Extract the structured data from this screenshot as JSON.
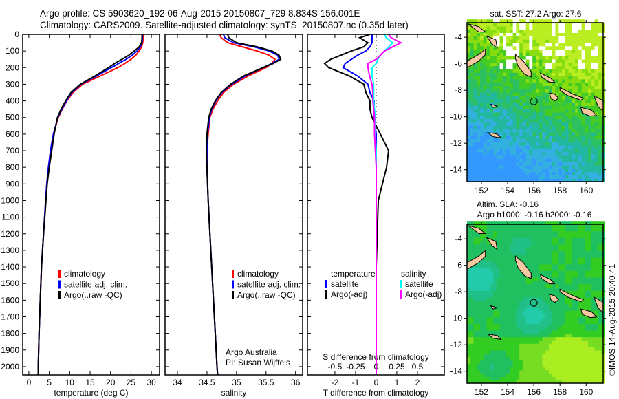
{
  "title": {
    "line1": "Argo profile: CS 5903620_192 06-Aug-2015 20150807_729 8.834S 156.001E",
    "line2": "Climatology: CARS2009. Satellite-adjusted climatology: synTS_20150807.nc (0.35d later)"
  },
  "colors": {
    "climatology": "#ff0000",
    "satellite": "#0000ff",
    "argo": "#000000",
    "sal_satellite": "#00ffff",
    "sal_argo": "#ff00ff",
    "land": "#f5c8a0"
  },
  "chart_data": [
    {
      "type": "line",
      "id": "temperature",
      "xlabel": "temperature (deg C)",
      "ylabel": "",
      "xlim": [
        -1.5,
        32
      ],
      "ylim": [
        2050,
        0
      ],
      "xticks": [
        0,
        5,
        10,
        15,
        20,
        25,
        30
      ],
      "yticks": [
        0,
        100,
        200,
        300,
        400,
        500,
        600,
        700,
        800,
        900,
        1000,
        1100,
        1200,
        1300,
        1400,
        1500,
        1600,
        1700,
        1800,
        1900,
        2000
      ],
      "depth": [
        0,
        20,
        50,
        75,
        100,
        125,
        150,
        175,
        200,
        250,
        300,
        350,
        400,
        450,
        500,
        600,
        700,
        800,
        900,
        1000,
        1200,
        1400,
        1600,
        1800,
        2000,
        2050
      ],
      "series": [
        {
          "name": "climatology",
          "color": "#ff0000",
          "values": [
            28,
            28,
            27.9,
            27.6,
            27,
            26.2,
            25,
            23.5,
            21.8,
            17.5,
            13.2,
            10.8,
            9.3,
            8.2,
            7.2,
            6,
            5.3,
            4.8,
            4.4,
            4.1,
            3.6,
            3.1,
            2.8,
            2.5,
            2.3,
            2.3
          ]
        },
        {
          "name": "satellite-adj. clim.",
          "color": "#0000ff",
          "values": [
            27.8,
            27.8,
            27.7,
            27.3,
            26.5,
            25.3,
            23.8,
            22,
            20.2,
            16.6,
            12.8,
            10.5,
            9.2,
            8.1,
            7.1,
            6,
            5.3,
            4.8,
            4.4,
            4.1,
            3.6,
            3.1,
            2.8,
            2.5,
            2.3,
            2.3
          ]
        },
        {
          "name": "Argo(..raw -QC)",
          "color": "#000000",
          "values": [
            27.7,
            27.7,
            27.6,
            27,
            25.8,
            24.5,
            22.8,
            21,
            19.5,
            16.2,
            12.6,
            10.3,
            9.0,
            7.9,
            7.0,
            6.2,
            5.6,
            5.0,
            4.5,
            4.2,
            3.6,
            3.1,
            2.8,
            2.5,
            2.3,
            2.3
          ]
        }
      ]
    },
    {
      "type": "line",
      "id": "salinity",
      "xlabel": "salinity",
      "xlim": [
        33.79,
        36.12
      ],
      "ylim": [
        2050,
        0
      ],
      "xticks": [
        34,
        34.5,
        35,
        35.5,
        36
      ],
      "xticklabels": [
        "34",
        "34.5",
        "35",
        "35.5",
        "36"
      ],
      "depth": [
        0,
        20,
        50,
        75,
        100,
        125,
        150,
        175,
        200,
        250,
        300,
        350,
        400,
        450,
        500,
        600,
        700,
        800,
        900,
        1000,
        1200,
        1400,
        1600,
        1800,
        2000,
        2050
      ],
      "series": [
        {
          "name": "climatology",
          "color": "#ff0000",
          "values": [
            34.72,
            34.74,
            34.85,
            35.1,
            35.35,
            35.55,
            35.65,
            35.6,
            35.5,
            35.2,
            34.95,
            34.78,
            34.68,
            34.6,
            34.55,
            34.52,
            34.5,
            34.5,
            34.51,
            34.52,
            34.55,
            34.58,
            34.61,
            34.64,
            34.67,
            34.68
          ]
        },
        {
          "name": "satellite-adj. clim.",
          "color": "#0000ff",
          "values": [
            34.78,
            34.8,
            34.95,
            35.3,
            35.55,
            35.7,
            35.72,
            35.6,
            35.45,
            35.15,
            34.92,
            34.75,
            34.65,
            34.58,
            34.54,
            34.51,
            34.5,
            34.5,
            34.51,
            34.52,
            34.55,
            34.58,
            34.61,
            34.64,
            34.67,
            34.68
          ]
        },
        {
          "name": "Argo(..raw -QC)",
          "color": "#000000",
          "values": [
            34.85,
            34.87,
            35.0,
            35.35,
            35.6,
            35.72,
            35.75,
            35.62,
            35.45,
            35.12,
            34.9,
            34.74,
            34.64,
            34.57,
            34.53,
            34.5,
            34.49,
            34.5,
            34.51,
            34.52,
            34.55,
            34.58,
            34.61,
            34.64,
            34.67,
            34.68
          ]
        }
      ],
      "annotations": [
        "Argo Australia",
        "PI: Susan Wijffels"
      ]
    },
    {
      "type": "line",
      "id": "differences",
      "xlabel": "T difference from climatology",
      "xlabel2": "S difference from climatology",
      "xlim": [
        -3.33,
        3.3
      ],
      "x2lim": [
        -0.8325,
        0.825
      ],
      "ylim": [
        2050,
        0
      ],
      "xticks": [
        -2,
        -1,
        0,
        1,
        2
      ],
      "x2ticks": [
        -0.5,
        -0.25,
        0,
        0.25,
        0.5
      ],
      "x2ticklabels": [
        "-0.5",
        "-0.25",
        "0",
        "0.25",
        "0.5"
      ],
      "legend_headers": [
        "temperature",
        "salinity"
      ],
      "depth": [
        0,
        20,
        50,
        75,
        100,
        125,
        150,
        175,
        200,
        250,
        300,
        350,
        400,
        450,
        500,
        600,
        700,
        800,
        900,
        1000,
        1200,
        1400,
        1600,
        1800,
        2000,
        2050
      ],
      "series": [
        {
          "name": "satellite",
          "group": "temperature",
          "axis": "T",
          "color": "#0000ff",
          "values": [
            -0.2,
            -0.2,
            -0.2,
            -0.3,
            -0.5,
            -0.9,
            -1.2,
            -1.5,
            -1.6,
            -0.9,
            -0.4,
            -0.3,
            -0.1,
            -0.1,
            -0.1,
            0,
            0,
            0,
            0,
            0,
            0,
            0,
            0,
            0,
            0,
            0
          ]
        },
        {
          "name": "Argo(-adj)",
          "group": "temperature",
          "axis": "T",
          "color": "#000000",
          "values": [
            -0.3,
            -0.8,
            -0.4,
            -0.6,
            -1.2,
            -1.7,
            -2.2,
            -2.5,
            -2.3,
            -1.3,
            -0.6,
            -0.5,
            -0.3,
            -0.3,
            -0.2,
            0.2,
            0.6,
            0.5,
            0.3,
            0.1,
            0.05,
            0,
            0,
            0,
            0,
            0
          ]
        },
        {
          "name": "satellite",
          "group": "salinity",
          "axis": "S",
          "color": "#00ffff",
          "values": [
            0.1,
            0.12,
            0.2,
            0.15,
            0.1,
            0.05,
            0.02,
            0,
            -0.05,
            -0.05,
            -0.03,
            -0.03,
            -0.03,
            -0.02,
            -0.01,
            -0.01,
            0,
            0,
            0,
            0,
            0,
            0,
            0,
            0,
            0,
            0
          ]
        },
        {
          "name": "Argo(-adj)",
          "group": "salinity",
          "axis": "S",
          "color": "#ff00ff",
          "values": [
            0.15,
            0.18,
            0.3,
            0.2,
            0.1,
            0.05,
            0,
            -0.1,
            -0.1,
            -0.08,
            -0.05,
            -0.04,
            -0.04,
            -0.03,
            -0.02,
            -0.02,
            -0.01,
            0,
            0,
            0,
            0,
            0,
            0,
            0,
            0,
            0
          ]
        }
      ]
    },
    {
      "type": "heatmap",
      "id": "sst-map",
      "title": "sat. SST: 27.2 Argo: 27.6",
      "xlim": [
        150.9,
        161.3
      ],
      "ylim": [
        -14.9,
        -2.9
      ],
      "xticks": [
        152,
        154,
        156,
        158,
        160
      ],
      "yticks": [
        -4,
        -6,
        -8,
        -10,
        -12,
        -14
      ],
      "marker": {
        "lon": 156.001,
        "lat": -8.834
      }
    },
    {
      "type": "heatmap",
      "id": "sla-map",
      "title": "Altim. SLA: -0.16",
      "subtitle": "Argo h1000: -0.16 h2000: -0.16",
      "xlim": [
        150.9,
        161.3
      ],
      "ylim": [
        -14.9,
        -2.9
      ],
      "xticks": [
        152,
        154,
        156,
        158,
        160
      ],
      "yticks": [
        -4,
        -6,
        -8,
        -10,
        -12,
        -14
      ],
      "marker": {
        "lon": 156.001,
        "lat": -8.834
      }
    }
  ],
  "land": [
    [
      [
        154.6,
        -5.3
      ],
      [
        155.2,
        -5.8
      ],
      [
        155.8,
        -6.6
      ],
      [
        155.8,
        -7.0
      ],
      [
        155.3,
        -6.8
      ],
      [
        154.8,
        -6.2
      ],
      [
        154.6,
        -5.6
      ]
    ],
    [
      [
        156.5,
        -6.7
      ],
      [
        157.3,
        -7.1
      ],
      [
        157.6,
        -7.4
      ],
      [
        157.2,
        -7.4
      ],
      [
        156.6,
        -7.0
      ]
    ],
    [
      [
        158.0,
        -7.8
      ],
      [
        159.0,
        -8.3
      ],
      [
        159.8,
        -8.6
      ],
      [
        159.6,
        -8.75
      ],
      [
        158.6,
        -8.4
      ],
      [
        158.0,
        -8.0
      ]
    ],
    [
      [
        157.2,
        -8.2
      ],
      [
        157.6,
        -8.3
      ],
      [
        157.9,
        -8.6
      ],
      [
        157.6,
        -8.8
      ],
      [
        157.3,
        -8.6
      ]
    ],
    [
      [
        159.6,
        -9.3
      ],
      [
        160.4,
        -9.5
      ],
      [
        160.8,
        -9.9
      ],
      [
        160.3,
        -9.95
      ],
      [
        159.7,
        -9.7
      ]
    ],
    [
      [
        160.6,
        -8.4
      ],
      [
        161.3,
        -8.8
      ],
      [
        161.3,
        -9.6
      ],
      [
        160.9,
        -9.2
      ]
    ],
    [
      [
        150.9,
        -5.8
      ],
      [
        151.8,
        -5.3
      ],
      [
        152.3,
        -4.9
      ],
      [
        152.3,
        -5.3
      ],
      [
        151.8,
        -5.8
      ],
      [
        150.9,
        -6.3
      ]
    ],
    [
      [
        152.4,
        -3.9
      ],
      [
        153.1,
        -4.2
      ],
      [
        153.2,
        -4.8
      ],
      [
        152.8,
        -4.5
      ]
    ],
    [
      [
        151.0,
        -3.0
      ],
      [
        151.8,
        -3.2
      ],
      [
        152.3,
        -3.6
      ],
      [
        151.8,
        -3.6
      ]
    ],
    [
      [
        152.5,
        -11.2
      ],
      [
        153.2,
        -11.3
      ],
      [
        153.5,
        -11.6
      ],
      [
        152.9,
        -11.5
      ]
    ],
    [
      [
        152.7,
        -9.05
      ],
      [
        153.2,
        -9.2
      ],
      [
        152.9,
        -9.3
      ]
    ]
  ],
  "credit": "©IMOS 14-Aug-2015 20:40:41"
}
